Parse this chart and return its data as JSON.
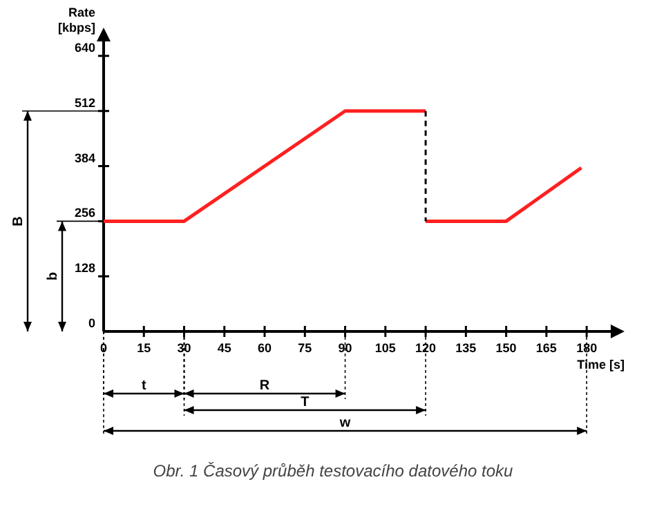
{
  "chart_data": {
    "type": "line",
    "xlabel": "Time [s]",
    "ylabel": "Rate [kbps]",
    "xlim": [
      0,
      190
    ],
    "xticks": [
      0,
      15,
      30,
      45,
      60,
      75,
      90,
      105,
      120,
      135,
      150,
      165,
      180
    ],
    "ylim": [
      0,
      680
    ],
    "yticks": [
      0,
      128,
      256,
      384,
      512,
      640
    ],
    "series": [
      {
        "color": "#ff2020",
        "x": [
          0,
          30,
          90,
          120
        ],
        "values": [
          256,
          256,
          512,
          512
        ]
      },
      {
        "color": "#ff2020",
        "x": [
          120,
          150,
          178
        ],
        "values": [
          256,
          256,
          380
        ]
      },
      {
        "color": "#000000",
        "x": [
          120,
          120
        ],
        "values": [
          512,
          256
        ],
        "line_style": "dashed"
      }
    ],
    "annotations": [
      "B",
      "b",
      "t",
      "R",
      "T",
      "w",
      "Obr. 1  Časový průběh testovacího datového toku"
    ],
    "grid": false,
    "marker": "none"
  }
}
